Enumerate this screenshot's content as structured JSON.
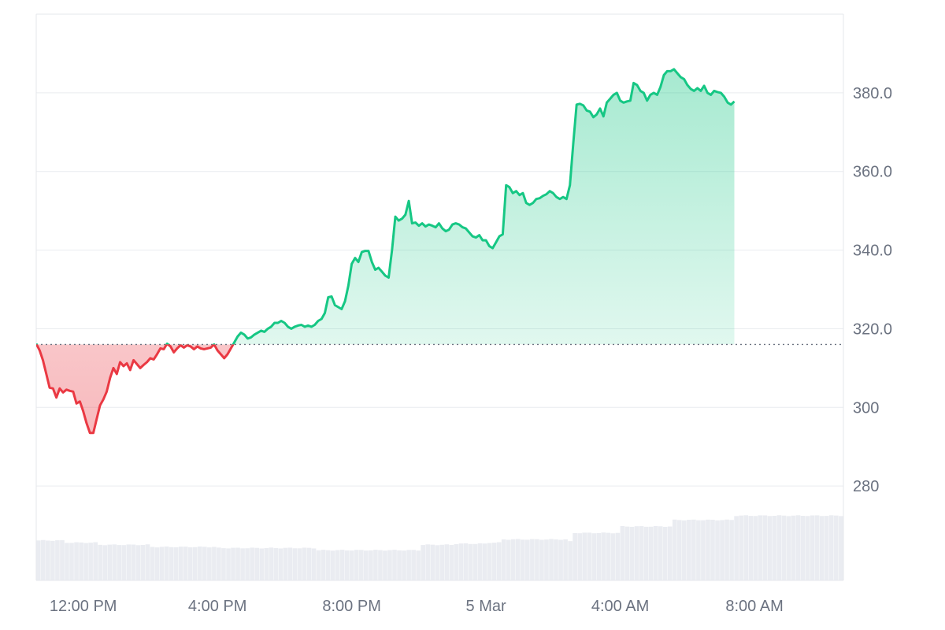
{
  "chart_data": {
    "type": "area",
    "colors": {
      "up": "#16c784",
      "down": "#ea3943",
      "up_fill": "#16c784",
      "down_fill": "#ea3943",
      "volume": "#e6e9ee"
    },
    "baseline": 316,
    "ylim": [
      256,
      400
    ],
    "y_ticks": [
      {
        "value": 380,
        "label": "380.0"
      },
      {
        "value": 360,
        "label": "360.0"
      },
      {
        "value": 340,
        "label": "340.0"
      },
      {
        "value": 320,
        "label": "320.0"
      },
      {
        "value": 300,
        "label": "300"
      },
      {
        "value": 280,
        "label": "280"
      }
    ],
    "x_range_hours": [
      -1.4,
      22.65
    ],
    "x_ticks": [
      {
        "hour": 0,
        "label": "12:00 PM"
      },
      {
        "hour": 4,
        "label": "4:00 PM"
      },
      {
        "hour": 8,
        "label": "8:00 PM"
      },
      {
        "hour": 12,
        "label": "5 Mar"
      },
      {
        "hour": 16,
        "label": "4:00 AM"
      },
      {
        "hour": 20,
        "label": "8:00 AM"
      }
    ],
    "series": [
      {
        "values": [
          [
            -1.4,
            316.2
          ],
          [
            -1.3,
            314.5
          ],
          [
            -1.2,
            312.0
          ],
          [
            -1.1,
            308.5
          ],
          [
            -1.0,
            305.0
          ],
          [
            -0.9,
            304.8
          ],
          [
            -0.8,
            302.5
          ],
          [
            -0.7,
            304.8
          ],
          [
            -0.6,
            303.8
          ],
          [
            -0.5,
            304.5
          ],
          [
            -0.4,
            304.2
          ],
          [
            -0.3,
            304.0
          ],
          [
            -0.2,
            301.0
          ],
          [
            -0.1,
            301.5
          ],
          [
            0.0,
            299.0
          ],
          [
            0.1,
            296.0
          ],
          [
            0.2,
            293.5
          ],
          [
            0.3,
            293.5
          ],
          [
            0.4,
            297.0
          ],
          [
            0.5,
            300.5
          ],
          [
            0.6,
            302.0
          ],
          [
            0.7,
            304.0
          ],
          [
            0.8,
            307.5
          ],
          [
            0.9,
            310.0
          ],
          [
            1.0,
            308.5
          ],
          [
            1.1,
            311.5
          ],
          [
            1.2,
            310.5
          ],
          [
            1.3,
            311.2
          ],
          [
            1.4,
            309.5
          ],
          [
            1.5,
            312.0
          ],
          [
            1.6,
            311.0
          ],
          [
            1.7,
            310.0
          ],
          [
            1.8,
            310.8
          ],
          [
            1.9,
            311.5
          ],
          [
            2.0,
            312.5
          ],
          [
            2.1,
            312.2
          ],
          [
            2.2,
            313.5
          ],
          [
            2.3,
            315.0
          ],
          [
            2.4,
            314.8
          ],
          [
            2.5,
            316.2
          ],
          [
            2.6,
            315.5
          ],
          [
            2.7,
            314.0
          ],
          [
            2.8,
            315.0
          ],
          [
            2.9,
            315.8
          ],
          [
            3.0,
            315.2
          ],
          [
            3.1,
            315.8
          ],
          [
            3.2,
            315.5
          ],
          [
            3.3,
            314.8
          ],
          [
            3.4,
            315.5
          ],
          [
            3.5,
            315.0
          ],
          [
            3.6,
            314.8
          ],
          [
            3.7,
            315.0
          ],
          [
            3.8,
            315.2
          ],
          [
            3.9,
            316.0
          ],
          [
            4.0,
            314.5
          ],
          [
            4.1,
            313.5
          ],
          [
            4.2,
            312.5
          ],
          [
            4.3,
            313.5
          ],
          [
            4.4,
            315.0
          ],
          [
            4.5,
            316.5
          ],
          [
            4.6,
            318.0
          ],
          [
            4.7,
            319.0
          ],
          [
            4.8,
            318.5
          ],
          [
            4.9,
            317.5
          ],
          [
            5.0,
            317.8
          ],
          [
            5.1,
            318.5
          ],
          [
            5.2,
            319.0
          ],
          [
            5.3,
            319.5
          ],
          [
            5.4,
            319.2
          ],
          [
            5.5,
            320.0
          ],
          [
            5.6,
            320.5
          ],
          [
            5.7,
            321.5
          ],
          [
            5.8,
            321.5
          ],
          [
            5.9,
            322.0
          ],
          [
            6.0,
            321.5
          ],
          [
            6.1,
            320.5
          ],
          [
            6.2,
            320.0
          ],
          [
            6.3,
            320.5
          ],
          [
            6.4,
            320.8
          ],
          [
            6.5,
            321.0
          ],
          [
            6.6,
            320.5
          ],
          [
            6.7,
            320.8
          ],
          [
            6.8,
            320.5
          ],
          [
            6.9,
            321.0
          ],
          [
            7.0,
            322.0
          ],
          [
            7.1,
            322.5
          ],
          [
            7.2,
            324.0
          ],
          [
            7.3,
            328.0
          ],
          [
            7.4,
            328.2
          ],
          [
            7.5,
            326.0
          ],
          [
            7.6,
            325.5
          ],
          [
            7.7,
            325.0
          ],
          [
            7.8,
            327.0
          ],
          [
            7.9,
            331.0
          ],
          [
            8.0,
            336.5
          ],
          [
            8.1,
            338.0
          ],
          [
            8.2,
            337.0
          ],
          [
            8.3,
            339.5
          ],
          [
            8.4,
            339.8
          ],
          [
            8.5,
            339.8
          ],
          [
            8.6,
            337.0
          ],
          [
            8.7,
            335.0
          ],
          [
            8.8,
            335.5
          ],
          [
            8.9,
            334.5
          ],
          [
            9.0,
            333.5
          ],
          [
            9.1,
            333.0
          ],
          [
            9.2,
            340.0
          ],
          [
            9.3,
            348.5
          ],
          [
            9.4,
            347.5
          ],
          [
            9.5,
            348.0
          ],
          [
            9.6,
            349.0
          ],
          [
            9.7,
            352.5
          ],
          [
            9.8,
            346.8
          ],
          [
            9.9,
            347.0
          ],
          [
            10.0,
            346.2
          ],
          [
            10.1,
            346.8
          ],
          [
            10.2,
            346.0
          ],
          [
            10.3,
            346.5
          ],
          [
            10.4,
            346.2
          ],
          [
            10.5,
            345.8
          ],
          [
            10.6,
            346.8
          ],
          [
            10.7,
            345.5
          ],
          [
            10.8,
            344.8
          ],
          [
            10.9,
            345.2
          ],
          [
            11.0,
            346.5
          ],
          [
            11.1,
            346.8
          ],
          [
            11.2,
            346.5
          ],
          [
            11.3,
            345.8
          ],
          [
            11.4,
            345.5
          ],
          [
            11.5,
            344.5
          ],
          [
            11.6,
            343.5
          ],
          [
            11.7,
            343.2
          ],
          [
            11.8,
            343.8
          ],
          [
            11.9,
            342.5
          ],
          [
            12.0,
            342.5
          ],
          [
            12.1,
            341.0
          ],
          [
            12.2,
            340.5
          ],
          [
            12.3,
            342.0
          ],
          [
            12.4,
            343.5
          ],
          [
            12.5,
            344.0
          ],
          [
            12.6,
            356.5
          ],
          [
            12.7,
            356.0
          ],
          [
            12.8,
            354.5
          ],
          [
            12.9,
            355.0
          ],
          [
            13.0,
            354.0
          ],
          [
            13.1,
            354.5
          ],
          [
            13.2,
            352.0
          ],
          [
            13.3,
            351.5
          ],
          [
            13.4,
            352.0
          ],
          [
            13.5,
            353.0
          ],
          [
            13.6,
            353.2
          ],
          [
            13.7,
            353.8
          ],
          [
            13.8,
            354.2
          ],
          [
            13.9,
            355.0
          ],
          [
            14.0,
            354.5
          ],
          [
            14.1,
            353.5
          ],
          [
            14.2,
            353.0
          ],
          [
            14.3,
            353.5
          ],
          [
            14.4,
            353.0
          ],
          [
            14.5,
            356.5
          ],
          [
            14.6,
            367.0
          ],
          [
            14.7,
            377.0
          ],
          [
            14.8,
            377.2
          ],
          [
            14.9,
            376.8
          ],
          [
            15.0,
            375.5
          ],
          [
            15.1,
            375.2
          ],
          [
            15.2,
            373.8
          ],
          [
            15.3,
            374.5
          ],
          [
            15.4,
            376.0
          ],
          [
            15.5,
            374.0
          ],
          [
            15.6,
            377.5
          ],
          [
            15.7,
            378.5
          ],
          [
            15.8,
            379.5
          ],
          [
            15.9,
            380.0
          ],
          [
            16.0,
            378.0
          ],
          [
            16.1,
            377.5
          ],
          [
            16.2,
            377.8
          ],
          [
            16.3,
            378.0
          ],
          [
            16.4,
            382.5
          ],
          [
            16.5,
            382.0
          ],
          [
            16.6,
            380.5
          ],
          [
            16.7,
            380.0
          ],
          [
            16.8,
            378.0
          ],
          [
            16.9,
            379.5
          ],
          [
            17.0,
            380.0
          ],
          [
            17.1,
            379.5
          ],
          [
            17.2,
            381.5
          ],
          [
            17.3,
            384.5
          ],
          [
            17.4,
            385.5
          ],
          [
            17.5,
            385.5
          ],
          [
            17.6,
            386.0
          ],
          [
            17.7,
            385.0
          ],
          [
            17.8,
            384.0
          ],
          [
            17.9,
            383.5
          ],
          [
            18.0,
            382.0
          ],
          [
            18.1,
            381.0
          ],
          [
            18.2,
            380.5
          ],
          [
            18.3,
            381.2
          ],
          [
            18.4,
            380.5
          ],
          [
            18.5,
            381.8
          ],
          [
            18.6,
            380.0
          ],
          [
            18.7,
            379.5
          ],
          [
            18.8,
            380.5
          ],
          [
            18.9,
            380.2
          ],
          [
            19.0,
            380.0
          ],
          [
            19.1,
            379.0
          ],
          [
            19.2,
            377.5
          ],
          [
            19.3,
            377.0
          ],
          [
            19.4,
            377.8
          ]
        ]
      }
    ],
    "volume": [
      [
        -1.4,
        0.37
      ],
      [
        -0.5,
        0.35
      ],
      [
        0.5,
        0.33
      ],
      [
        2.0,
        0.31
      ],
      [
        4.0,
        0.3
      ],
      [
        6.0,
        0.3
      ],
      [
        7.0,
        0.28
      ],
      [
        8.0,
        0.28
      ],
      [
        9.0,
        0.28
      ],
      [
        10.0,
        0.33
      ],
      [
        11.0,
        0.34
      ],
      [
        12.0,
        0.35
      ],
      [
        12.5,
        0.38
      ],
      [
        14.5,
        0.36
      ],
      [
        14.6,
        0.44
      ],
      [
        16.0,
        0.5
      ],
      [
        17.5,
        0.56
      ],
      [
        19.4,
        0.6
      ]
    ]
  }
}
